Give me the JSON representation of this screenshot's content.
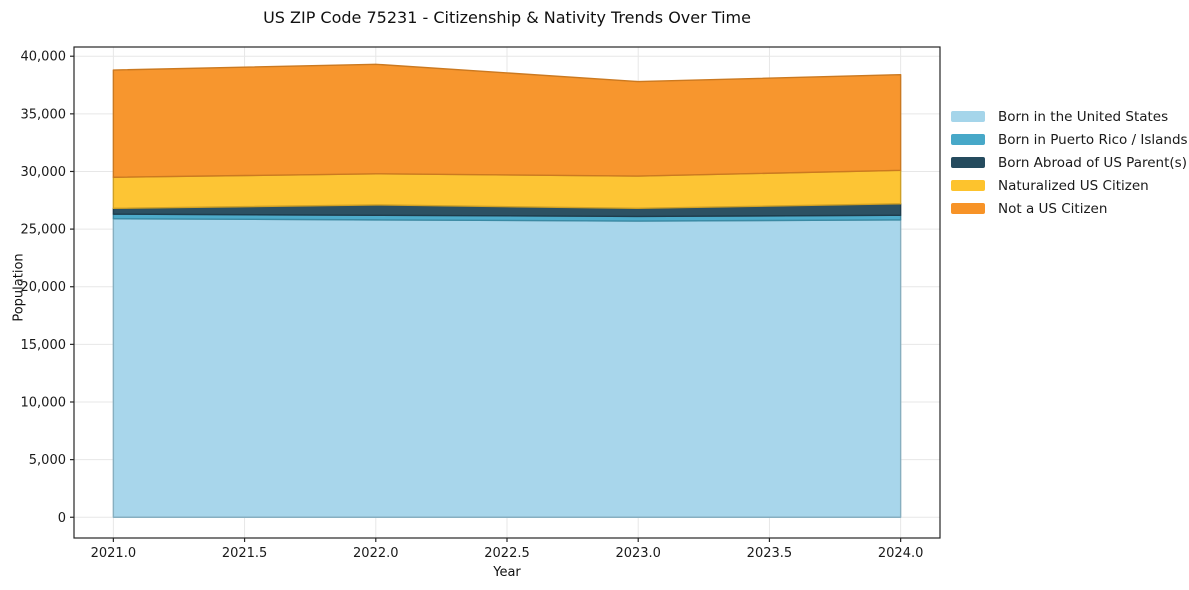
{
  "title": "US ZIP Code 75231 - Citizenship & Nativity Trends Over Time",
  "axes": {
    "x_label": "Year",
    "y_label": "Population",
    "x_tick_labels": [
      "2021.0",
      "2021.5",
      "2022.0",
      "2022.5",
      "2023.0",
      "2023.5",
      "2024.0"
    ],
    "y_tick_labels": [
      "0",
      "5,000",
      "10,000",
      "15,000",
      "20,000",
      "25,000",
      "30,000",
      "35,000",
      "40,000"
    ]
  },
  "legend": {
    "items": [
      "Born in the United States",
      "Born in Puerto Rico / Islands",
      "Born Abroad of US Parent(s)",
      "Naturalized US Citizen",
      "Not a US Citizen"
    ]
  },
  "colors": {
    "background": "#ffffff",
    "grid": "#e7e7e7",
    "spine": "#262626",
    "text": "#1a1a1a",
    "born_us": "#a5d5ea",
    "pr_islands": "#47a8c8",
    "born_abroad": "#254b5e",
    "naturalized": "#fdc32d",
    "not_citizen": "#f79327"
  },
  "chart_data": {
    "type": "area",
    "stacked": true,
    "title": "US ZIP Code 75231 - Citizenship & Nativity Trends Over Time",
    "xlabel": "Year",
    "ylabel": "Population",
    "x": [
      2021,
      2022,
      2023,
      2024
    ],
    "series": [
      {
        "name": "Born in the United States",
        "color": "#a5d5ea",
        "values": [
          25900,
          25800,
          25700,
          25800
        ]
      },
      {
        "name": "Born in Puerto Rico / Islands",
        "color": "#47a8c8",
        "values": [
          400,
          400,
          400,
          400
        ]
      },
      {
        "name": "Born Abroad of US Parent(s)",
        "color": "#254b5e",
        "values": [
          500,
          900,
          700,
          1000
        ]
      },
      {
        "name": "Naturalized US Citizen",
        "color": "#fdc32d",
        "values": [
          2700,
          2700,
          2800,
          2900
        ]
      },
      {
        "name": "Not a US Citizen",
        "color": "#f79327",
        "values": [
          9300,
          9500,
          8200,
          8300
        ]
      }
    ],
    "stacked_totals": [
      38800,
      39300,
      37800,
      38400
    ],
    "x_ticks": [
      2021.0,
      2021.5,
      2022.0,
      2022.5,
      2023.0,
      2023.5,
      2024.0
    ],
    "y_ticks": [
      0,
      5000,
      10000,
      15000,
      20000,
      25000,
      30000,
      35000,
      40000
    ],
    "xlim": [
      2020.85,
      2024.15
    ],
    "ylim": [
      -1800,
      40800
    ],
    "grid": true,
    "legend_position": "right-outside"
  }
}
